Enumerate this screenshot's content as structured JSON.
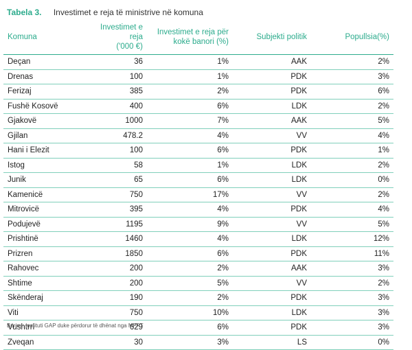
{
  "caption": {
    "label": "Tabela 3.",
    "title": "Investimet e reja të ministrive në komuna"
  },
  "table": {
    "headers": {
      "komuna": "Komuna",
      "investimet_line1": "Investimet e reja",
      "investimet_line2": "('000 €)",
      "per_koke_line1": "Investimet e reja për",
      "per_koke_line2": "kokë banori (%)",
      "subjekti": "Subjekti politik",
      "popullsia": "Popullsia(%)"
    },
    "rows": [
      {
        "komuna": "Deçan",
        "investimet": "36",
        "per_koke": "1%",
        "subjekti": "AAK",
        "popullsia": "2%"
      },
      {
        "komuna": "Drenas",
        "investimet": "100",
        "per_koke": "1%",
        "subjekti": "PDK",
        "popullsia": "3%"
      },
      {
        "komuna": "Ferizaj",
        "investimet": "385",
        "per_koke": "2%",
        "subjekti": "PDK",
        "popullsia": "6%"
      },
      {
        "komuna": "Fushë Kosovë",
        "investimet": "400",
        "per_koke": "6%",
        "subjekti": "LDK",
        "popullsia": "2%"
      },
      {
        "komuna": "Gjakovë",
        "investimet": "1000",
        "per_koke": "7%",
        "subjekti": "AAK",
        "popullsia": "5%"
      },
      {
        "komuna": "Gjilan",
        "investimet": "478.2",
        "per_koke": "4%",
        "subjekti": "VV",
        "popullsia": "4%"
      },
      {
        "komuna": "Hani i Elezit",
        "investimet": "100",
        "per_koke": "6%",
        "subjekti": "PDK",
        "popullsia": "1%"
      },
      {
        "komuna": "Istog",
        "investimet": "58",
        "per_koke": "1%",
        "subjekti": "LDK",
        "popullsia": "2%"
      },
      {
        "komuna": "Junik",
        "investimet": "65",
        "per_koke": "6%",
        "subjekti": "LDK",
        "popullsia": "0%"
      },
      {
        "komuna": "Kamenicë",
        "investimet": "750",
        "per_koke": "17%",
        "subjekti": "VV",
        "popullsia": "2%"
      },
      {
        "komuna": "Mitrovicë",
        "investimet": "395",
        "per_koke": "4%",
        "subjekti": "PDK",
        "popullsia": "4%"
      },
      {
        "komuna": "Podujevë",
        "investimet": "1195",
        "per_koke": "9%",
        "subjekti": "VV",
        "popullsia": "5%"
      },
      {
        "komuna": "Prishtinë",
        "investimet": "1460",
        "per_koke": "4%",
        "subjekti": "LDK",
        "popullsia": "12%"
      },
      {
        "komuna": "Prizren",
        "investimet": "1850",
        "per_koke": "6%",
        "subjekti": "PDK",
        "popullsia": "11%"
      },
      {
        "komuna": "Rahovec",
        "investimet": "200",
        "per_koke": "2%",
        "subjekti": "AAK",
        "popullsia": "3%"
      },
      {
        "komuna": "Shtime",
        "investimet": "200",
        "per_koke": "5%",
        "subjekti": "VV",
        "popullsia": "2%"
      },
      {
        "komuna": "Skënderaj",
        "investimet": "190",
        "per_koke": "2%",
        "subjekti": "PDK",
        "popullsia": "3%"
      },
      {
        "komuna": "Viti",
        "investimet": "750",
        "per_koke": "10%",
        "subjekti": "LDK",
        "popullsia": "3%"
      },
      {
        "komuna": "Vushtrri",
        "investimet": "629",
        "per_koke": "6%",
        "subjekti": "PDK",
        "popullsia": "3%"
      },
      {
        "komuna": "Zveqan",
        "investimet": "30",
        "per_koke": "3%",
        "subjekti": "LS",
        "popullsia": "0%"
      }
    ]
  },
  "source": "Burimi: Instituti GAP duke përdorur të dhënat nga MFPT",
  "colors": {
    "accent": "#2bab8c",
    "row_border": "#7fcfba",
    "text": "#222222"
  }
}
